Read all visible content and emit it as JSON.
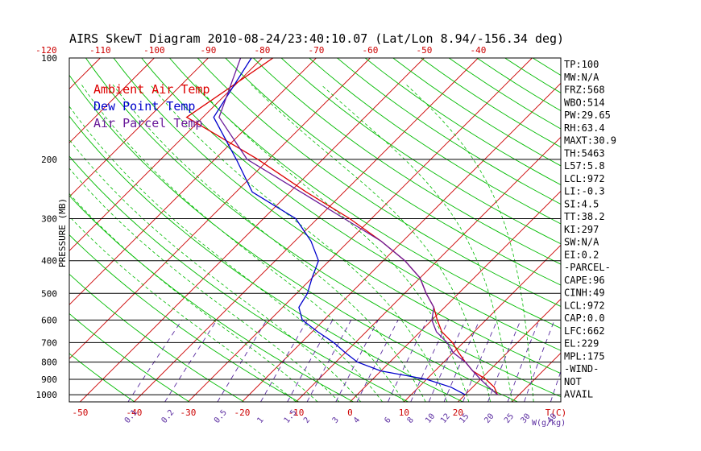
{
  "chart_data": {
    "type": "skewt",
    "title": "AIRS SkewT Diagram 2010-08-24/23:40:10.07 (Lat/Lon 8.94/-156.34 deg)",
    "ylabel": "PRESSURE (MB)",
    "xlabel": "T(C)",
    "wlabel": "W(g/kg)",
    "pressure_ticks": [
      100,
      200,
      300,
      400,
      500,
      600,
      700,
      800,
      900,
      1000
    ],
    "top_temp_ticks": [
      -120,
      -110,
      -100,
      -90,
      -80,
      -70,
      -60,
      -50,
      -40
    ],
    "bottom_temp_ticks": [
      -50,
      -40,
      -30,
      -20,
      -10,
      0,
      10,
      20
    ],
    "mixing_ratio_ticks": [
      "0.1",
      "0.2",
      "0.5",
      "1",
      "1.5",
      "2",
      "3",
      "4",
      "6",
      "8",
      "10",
      "12",
      "15",
      "20",
      "25",
      "30",
      "40"
    ],
    "legend": [
      {
        "name": "Ambient Air Temp",
        "color": "#dd0000"
      },
      {
        "name": "Dew Point Temp",
        "color": "#0000cc"
      },
      {
        "name": "Air Parcel Temp",
        "color": "#6a1b9a"
      }
    ],
    "colors": {
      "isotherm": "#cc0000",
      "dry_adiabat": "#00bb00",
      "moist_adiabat": "#00bb00",
      "mixing_ratio": "#5a2ca0",
      "isobar": "#000000"
    },
    "series": [
      {
        "name": "Ambient Air Temp",
        "color": "#dd0000",
        "points": [
          [
            100,
            -78
          ],
          [
            150,
            -83
          ],
          [
            200,
            -62
          ],
          [
            250,
            -47
          ],
          [
            300,
            -34
          ],
          [
            350,
            -24
          ],
          [
            400,
            -16
          ],
          [
            450,
            -10
          ],
          [
            500,
            -6
          ],
          [
            550,
            -2
          ],
          [
            600,
            1
          ],
          [
            650,
            4
          ],
          [
            700,
            8
          ],
          [
            750,
            11
          ],
          [
            800,
            14
          ],
          [
            850,
            17
          ],
          [
            900,
            21
          ],
          [
            950,
            24
          ],
          [
            1000,
            26
          ]
        ]
      },
      {
        "name": "Dew Point Temp",
        "color": "#0000cc",
        "points": [
          [
            100,
            -82
          ],
          [
            150,
            -78
          ],
          [
            200,
            -66
          ],
          [
            250,
            -57
          ],
          [
            300,
            -44
          ],
          [
            350,
            -37
          ],
          [
            400,
            -32
          ],
          [
            450,
            -30
          ],
          [
            500,
            -28
          ],
          [
            550,
            -27
          ],
          [
            600,
            -24
          ],
          [
            650,
            -19
          ],
          [
            700,
            -14
          ],
          [
            750,
            -10
          ],
          [
            800,
            -6
          ],
          [
            850,
            0
          ],
          [
            900,
            10
          ],
          [
            950,
            16
          ],
          [
            1000,
            20
          ]
        ]
      },
      {
        "name": "Air Parcel Temp",
        "color": "#6a1b9a",
        "points": [
          [
            100,
            -84
          ],
          [
            150,
            -77
          ],
          [
            200,
            -64
          ],
          [
            250,
            -48
          ],
          [
            300,
            -35
          ],
          [
            350,
            -24
          ],
          [
            400,
            -16
          ],
          [
            450,
            -10
          ],
          [
            500,
            -6
          ],
          [
            550,
            -2
          ],
          [
            600,
            0
          ],
          [
            650,
            3
          ],
          [
            700,
            7
          ],
          [
            750,
            10
          ],
          [
            800,
            14
          ],
          [
            850,
            17
          ],
          [
            900,
            20
          ],
          [
            950,
            23
          ],
          [
            1000,
            26
          ]
        ]
      }
    ],
    "indices": [
      "TP:100",
      "MW:N/A",
      "FRZ:568",
      "WBO:514",
      "PW:29.65",
      "RH:63.4",
      "MAXT:30.9",
      "TH:5463",
      "L57:5.8",
      "LCL:972",
      "LI:-0.3",
      "SI:4.5",
      "TT:38.2",
      "KI:297",
      "SW:N/A",
      "EI:0.2",
      "-PARCEL-",
      "CAPE:96",
      "CINH:49",
      "LCL:972",
      "CAP:0.0",
      "LFC:662",
      "EL:229",
      "MPL:175",
      "-WIND-",
      "NOT",
      "AVAIL"
    ]
  }
}
